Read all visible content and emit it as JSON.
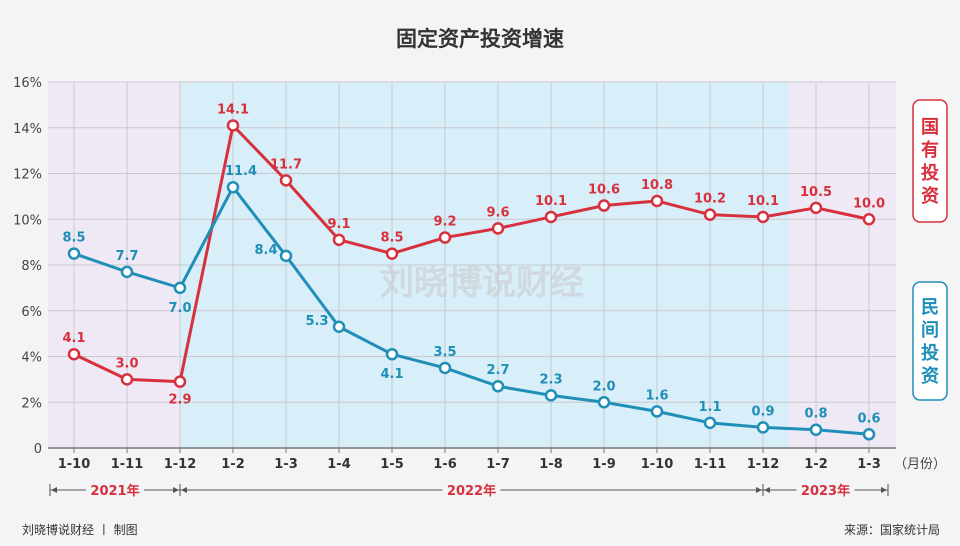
{
  "chart_data": {
    "type": "line",
    "title": "固定资产投资增速",
    "categories": [
      "1-10",
      "1-11",
      "1-12",
      "1-2",
      "1-3",
      "1-4",
      "1-5",
      "1-6",
      "1-7",
      "1-8",
      "1-9",
      "1-10",
      "1-11",
      "1-12",
      "1-2",
      "1-3"
    ],
    "xunit": "（月份）",
    "ylim": [
      0,
      16
    ],
    "yticks": [
      "0",
      "2%",
      "4%",
      "6%",
      "8%",
      "10%",
      "12%",
      "14%",
      "16%"
    ],
    "grid": true,
    "series": [
      {
        "name": "国有投资",
        "color": "#d6313d",
        "values": [
          4.1,
          3.0,
          2.9,
          14.1,
          11.7,
          9.1,
          8.5,
          9.2,
          9.6,
          10.1,
          10.6,
          10.8,
          10.2,
          10.1,
          10.5,
          10.0
        ],
        "labels": [
          "4.1",
          "3.0",
          "2.9",
          "14.1",
          "11.7",
          "9.1",
          "8.5",
          "9.2",
          "9.6",
          "10.1",
          "10.6",
          "10.8",
          "10.2",
          "10.1",
          "10.5",
          "10.0"
        ]
      },
      {
        "name": "民间投资",
        "color": "#1f8fb7",
        "values": [
          8.5,
          7.7,
          7.0,
          11.4,
          8.4,
          5.3,
          4.1,
          3.5,
          2.7,
          2.3,
          2.0,
          1.6,
          1.1,
          0.9,
          0.8,
          0.6
        ],
        "labels": [
          "8.5",
          "7.7",
          "7.0",
          "11.4",
          "8.4",
          "5.3",
          "4.1",
          "3.5",
          "2.7",
          "2.3",
          "2.0",
          "1.6",
          "1.1",
          "0.9",
          "0.8",
          "0.6"
        ]
      }
    ],
    "periods": [
      {
        "label": "2021年",
        "from": 0,
        "to": 2
      },
      {
        "label": "2022年",
        "from": 2,
        "to": 13
      },
      {
        "label": "2023年",
        "from": 13,
        "to": 15
      }
    ],
    "legend_placement": "right",
    "watermark": "刘晓博说财经",
    "footer_left": "刘晓博说财经 丨 制图",
    "footer_right": "来源：国家统计局"
  }
}
